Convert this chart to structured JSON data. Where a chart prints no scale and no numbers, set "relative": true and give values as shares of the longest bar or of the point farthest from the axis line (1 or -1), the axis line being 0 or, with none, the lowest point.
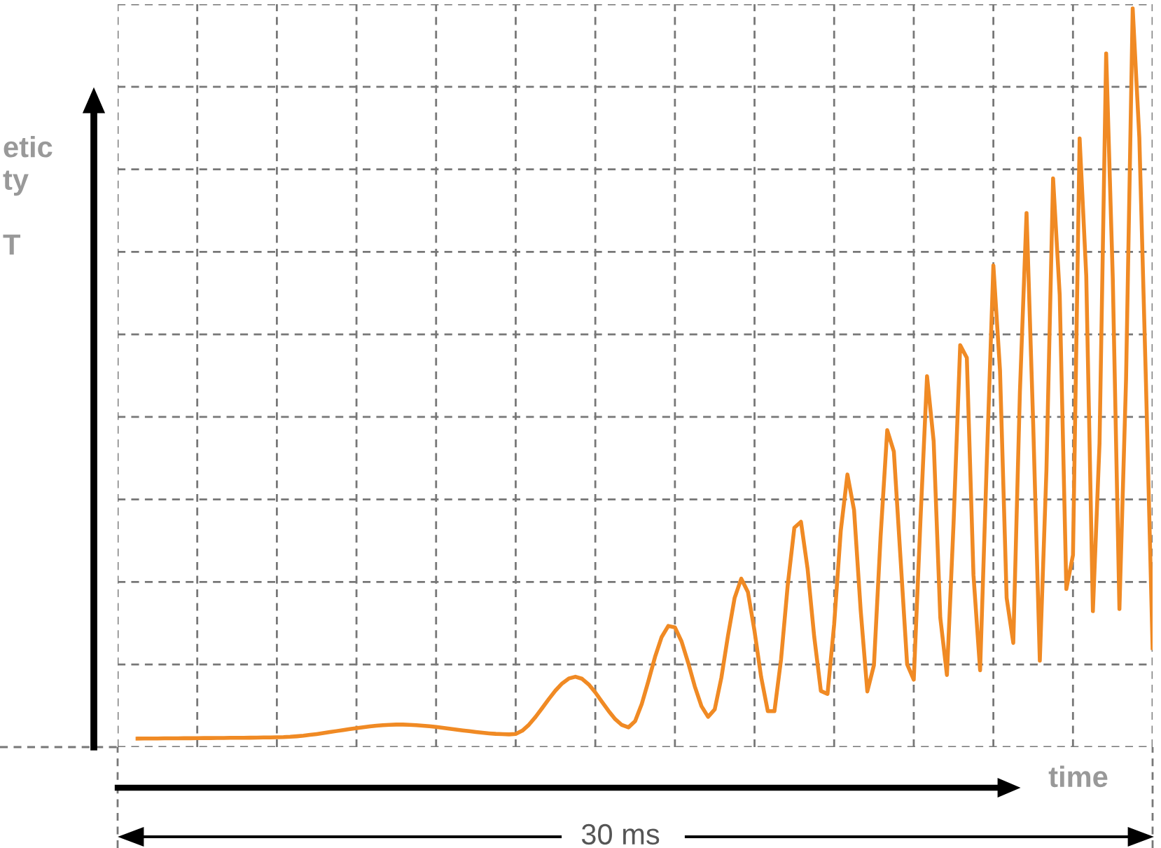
{
  "chart_data": {
    "type": "line",
    "relative": true,
    "xlabel": "time",
    "ylabel": "etic\nty\n\nT",
    "annotations": [
      "30 ms"
    ],
    "categories": [
      null,
      null,
      null,
      null,
      null,
      null,
      null,
      null,
      null,
      null,
      null,
      null,
      null,
      null,
      null,
      null,
      null,
      null,
      null,
      null,
      null,
      null,
      null,
      null,
      null,
      null,
      null,
      null,
      null,
      null,
      null,
      null,
      null,
      null,
      null,
      null,
      null,
      null,
      null,
      null,
      null,
      null,
      null,
      null,
      null,
      null,
      null,
      null,
      null,
      null,
      null,
      null,
      null,
      null,
      null,
      null,
      null,
      null,
      null,
      null,
      null,
      null,
      null,
      null,
      null,
      null,
      null,
      null,
      null,
      null,
      null,
      null,
      null,
      null,
      null,
      null,
      null,
      null,
      null,
      null,
      null,
      null,
      null,
      null,
      null,
      null,
      null,
      null,
      null,
      null,
      null,
      null,
      null,
      null,
      null,
      null,
      null,
      null,
      null,
      null,
      null,
      null,
      null,
      null,
      null,
      null,
      null,
      null,
      null,
      null,
      null,
      null,
      null,
      null,
      null,
      null,
      null,
      null,
      null,
      null,
      null,
      null,
      null,
      null,
      null,
      null,
      null,
      null,
      null,
      null,
      null,
      null,
      null,
      null,
      null,
      null,
      null,
      null,
      null,
      null,
      null,
      null,
      null,
      null,
      null,
      null,
      null,
      null,
      null,
      null,
      null,
      null,
      null,
      null,
      null,
      null,
      null
    ],
    "grid": true,
    "line_style": "solid",
    "series": [
      {
        "color": "#f08a24",
        "values": [
          null,
          null,
          null,
          0.0115,
          0.0116,
          0.0116,
          0.0117,
          0.0118,
          0.0118,
          0.0119,
          0.012,
          0.012,
          0.0121,
          0.0122,
          0.0122,
          0.0123,
          0.0124,
          0.0125,
          0.0125,
          0.0126,
          0.0127,
          0.0129,
          0.013,
          0.0131,
          0.0133,
          0.0135,
          0.0139,
          0.0146,
          0.0154,
          0.0165,
          0.0176,
          0.0189,
          0.0203,
          0.0217,
          0.023,
          0.0244,
          0.0257,
          0.0269,
          0.028,
          0.029,
          0.0297,
          0.0302,
          0.0305,
          0.0305,
          0.0302,
          0.0297,
          0.029,
          0.0282,
          0.0272,
          0.0261,
          0.025,
          0.0238,
          0.0226,
          0.0215,
          0.0204,
          0.0195,
          0.0186,
          0.0179,
          0.0175,
          0.0172,
          0.0177,
          0.0222,
          0.0303,
          0.0409,
          0.0529,
          0.0651,
          0.0766,
          0.0862,
          0.0928,
          0.0953,
          0.0925,
          0.0849,
          0.074,
          0.0614,
          0.0489,
          0.0378,
          0.0299,
          0.0267,
          0.0352,
          0.0583,
          0.0893,
          0.122,
          0.149,
          0.164,
          0.162,
          0.143,
          0.114,
          0.082,
          0.0554,
          0.0409,
          0.051,
          0.0939,
          0.151,
          0.202,
          0.228,
          0.21,
          0.157,
          0.0946,
          0.0487,
          0.0486,
          0.119,
          0.219,
          0.297,
          0.305,
          0.241,
          0.149,
          0.076,
          0.0719,
          0.166,
          0.293,
          0.369,
          0.321,
          0.185,
          0.0753,
          0.111,
          0.285,
          0.429,
          0.4,
          0.256,
          0.112,
          0.0913,
          0.305,
          0.502,
          0.414,
          0.175,
          0.0976,
          0.303,
          0.544,
          0.527,
          0.233,
          0.104,
          0.384,
          0.652,
          0.51,
          0.202,
          0.141,
          0.481,
          0.723,
          0.438,
          0.117,
          0.375,
          0.77,
          0.612,
          0.214,
          0.26,
          0.824,
          0.638,
          0.184,
          0.411,
          0.939,
          0.634,
          0.187,
          0.498,
          1,
          0.825,
          0.493,
          0.134
        ]
      }
    ]
  }
}
